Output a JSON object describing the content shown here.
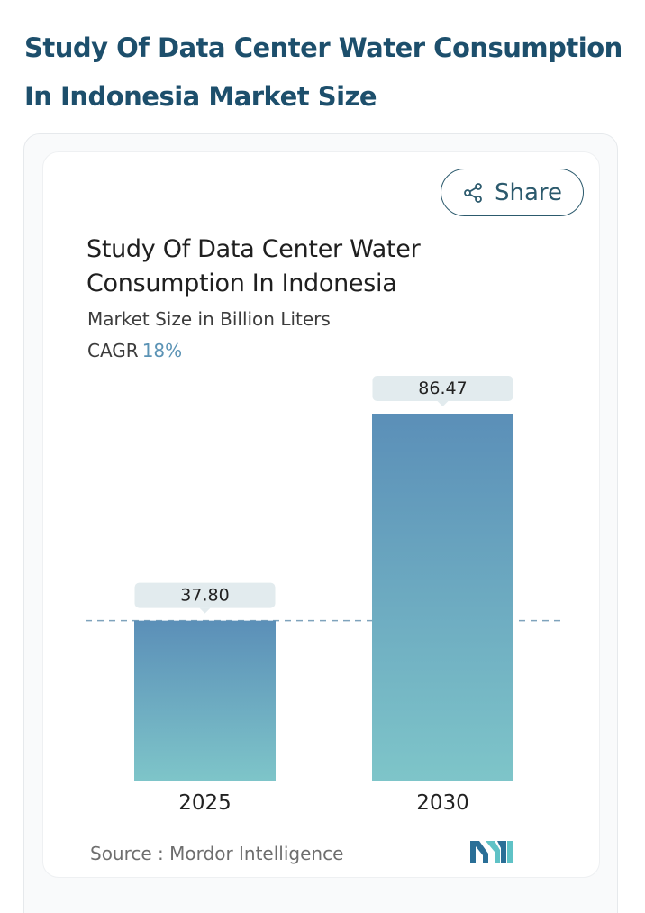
{
  "page": {
    "heading": "Study Of Data Center Water Consumption In Indonesia Market Size"
  },
  "share": {
    "label": "Share",
    "icon": "share-icon"
  },
  "chart": {
    "title": "Study Of Data Center Water Consumption In Indonesia",
    "subtitle": "Market Size in Billion Liters",
    "cagr_label": "CAGR",
    "cagr_value": "18%"
  },
  "source": {
    "text": "Source :  Mordor Intelligence",
    "logo": "mordor-intelligence-logo"
  },
  "colors": {
    "heading": "#1d4f6c",
    "bar_top": "#5b8fb8",
    "bar_bottom": "#7ec5c9",
    "label_box": "#e2ebee",
    "dashed_line": "#7fa3bc",
    "accent": "#5b93b5"
  },
  "chart_data": {
    "type": "bar",
    "categories": [
      "2025",
      "2030"
    ],
    "values": [
      37.8,
      86.47
    ],
    "value_labels": [
      "37.80",
      "86.47"
    ],
    "title": "Study Of Data Center Water Consumption In Indonesia",
    "subtitle": "Market Size in Billion Liters",
    "xlabel": "",
    "ylabel": "",
    "ylim": [
      0,
      86.47
    ],
    "grid": false,
    "legend": "none",
    "reference_line": 37.8
  }
}
